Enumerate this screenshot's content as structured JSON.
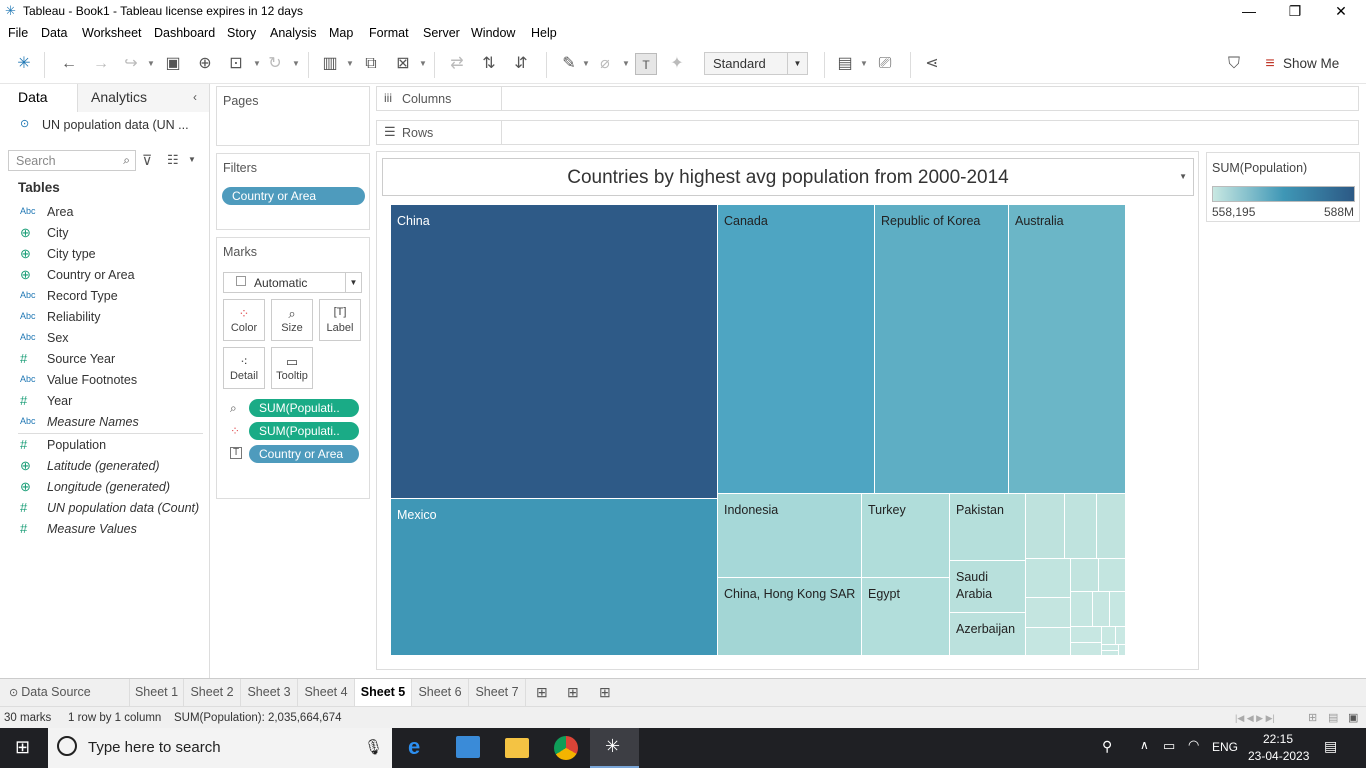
{
  "window": {
    "title": "Tableau - Book1 - Tableau license expires in 12 days",
    "minimize": "—",
    "maximize": "❐",
    "close": "✕"
  },
  "menu": [
    "File",
    "Data",
    "Worksheet",
    "Dashboard",
    "Story",
    "Analysis",
    "Map",
    "Format",
    "Server",
    "Window",
    "Help"
  ],
  "toolbar": {
    "fit_select": "Standard",
    "show_me": "Show Me"
  },
  "data_pane": {
    "tab_data": "Data",
    "tab_analytics": "Analytics",
    "datasource": "UN population data (UN ...",
    "search_placeholder": "Search",
    "tables_header": "Tables",
    "fields": [
      {
        "type": "Abc",
        "name": "Area"
      },
      {
        "type": "globe",
        "name": "City"
      },
      {
        "type": "globe",
        "name": "City type"
      },
      {
        "type": "globe",
        "name": "Country or Area"
      },
      {
        "type": "Abc",
        "name": "Record Type"
      },
      {
        "type": "Abc",
        "name": "Reliability"
      },
      {
        "type": "Abc",
        "name": "Sex"
      },
      {
        "type": "#",
        "name": "Source Year"
      },
      {
        "type": "Abc",
        "name": "Value Footnotes"
      },
      {
        "type": "#",
        "name": "Year"
      },
      {
        "type": "Abc",
        "name": "Measure Names"
      }
    ],
    "measures": [
      {
        "type": "#",
        "name": "Population"
      },
      {
        "type": "globe",
        "name": "Latitude (generated)"
      },
      {
        "type": "globe",
        "name": "Longitude (generated)"
      },
      {
        "type": "#",
        "name": "UN population data (Count)"
      },
      {
        "type": "#",
        "name": "Measure Values"
      }
    ]
  },
  "shelves": {
    "pages": "Pages",
    "columns": "Columns",
    "rows": "Rows",
    "filters": "Filters",
    "filter_pill": "Country or Area",
    "marks": "Marks",
    "mark_type": "Automatic",
    "mark_buttons": [
      "Color",
      "Size",
      "Label",
      "Detail",
      "Tooltip"
    ],
    "mark_pills": [
      "SUM(Populati..",
      "SUM(Populati..",
      "Country or Area"
    ]
  },
  "chart_data": {
    "type": "treemap",
    "title": "Countries by highest avg population from 2000-2014",
    "labeled_cells": [
      "China",
      "Mexico",
      "Canada",
      "Republic of Korea",
      "Australia",
      "Indonesia",
      "China, Hong Kong SAR",
      "Turkey",
      "Egypt",
      "Pakistan",
      "Saudi Arabia",
      "Azerbaijan"
    ]
  },
  "legend": {
    "title": "SUM(Population)",
    "min": "558,195",
    "max": "588M",
    "color_low": "#c9e8e2",
    "color_high": "#2c5985"
  },
  "sheets": [
    "Data Source",
    "Sheet 1",
    "Sheet 2",
    "Sheet 3",
    "Sheet 4",
    "Sheet 5",
    "Sheet 6",
    "Sheet 7"
  ],
  "active_sheet": "Sheet 5",
  "status": {
    "marks": "30 marks",
    "dims": "1 row by 1 column",
    "sum": "SUM(Population): 2,035,664,674"
  },
  "taskbar": {
    "search_placeholder": "Type here to search",
    "lang": "ENG",
    "time": "22:15",
    "date": "23-04-2023"
  }
}
